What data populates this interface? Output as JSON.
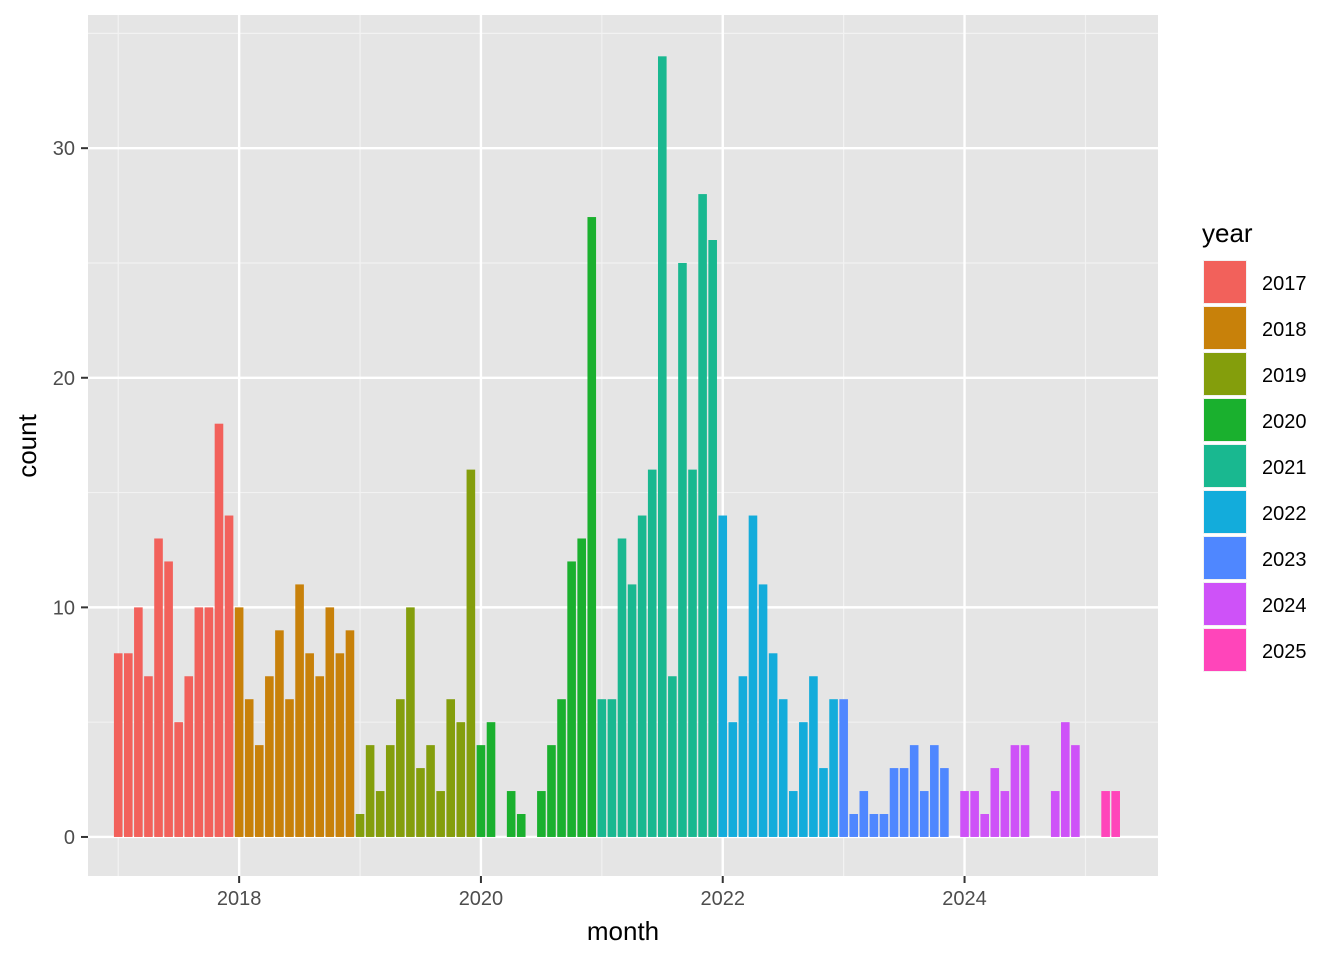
{
  "chart_data": {
    "type": "bar",
    "title": "",
    "xlabel": "month",
    "ylabel": "count",
    "ylim": [
      -1.7,
      35.8
    ],
    "xlim": [
      2016.75,
      2025.6
    ],
    "grid": true,
    "x_ticks": [
      "2018",
      "2020",
      "2022",
      "2024"
    ],
    "y_ticks": [
      "0",
      "10",
      "20",
      "30"
    ],
    "legend": {
      "title": "year",
      "placement": "right"
    },
    "series": [
      {
        "name": "2017",
        "color": "#F2615B",
        "months": [
          1,
          2,
          3,
          4,
          5,
          6,
          7,
          8,
          9,
          10,
          11,
          12
        ],
        "values": [
          8,
          8,
          10,
          7,
          13,
          12,
          5,
          7,
          10,
          10,
          18,
          14
        ]
      },
      {
        "name": "2018",
        "color": "#C8810A",
        "months": [
          1,
          2,
          3,
          4,
          5,
          6,
          7,
          8,
          9,
          10,
          11,
          12
        ],
        "values": [
          10,
          6,
          4,
          7,
          9,
          6,
          11,
          8,
          7,
          10,
          8,
          9
        ]
      },
      {
        "name": "2019",
        "color": "#849E0C",
        "months": [
          1,
          2,
          3,
          4,
          5,
          6,
          7,
          8,
          9,
          10,
          11,
          12
        ],
        "values": [
          1,
          4,
          2,
          4,
          6,
          10,
          3,
          4,
          2,
          6,
          5,
          16
        ]
      },
      {
        "name": "2020",
        "color": "#1AB02E",
        "months": [
          1,
          2,
          3,
          4,
          5,
          6,
          7,
          8,
          9,
          10,
          11,
          12
        ],
        "values": [
          4,
          5,
          0,
          2,
          1,
          0,
          2,
          4,
          6,
          12,
          13,
          27
        ]
      },
      {
        "name": "2021",
        "color": "#19B890",
        "months": [
          1,
          2,
          3,
          4,
          5,
          6,
          7,
          8,
          9,
          10,
          11,
          12
        ],
        "values": [
          6,
          6,
          13,
          11,
          14,
          16,
          34,
          7,
          25,
          16,
          28,
          26
        ]
      },
      {
        "name": "2022",
        "color": "#13ACDB",
        "months": [
          1,
          2,
          3,
          4,
          5,
          6,
          7,
          8,
          9,
          10,
          11,
          12
        ],
        "values": [
          14,
          5,
          7,
          14,
          11,
          8,
          6,
          2,
          5,
          7,
          3,
          6
        ]
      },
      {
        "name": "2023",
        "color": "#4F87FF",
        "months": [
          1,
          2,
          3,
          4,
          5,
          6,
          7,
          8,
          9,
          10,
          11,
          12
        ],
        "values": [
          6,
          1,
          2,
          1,
          1,
          3,
          3,
          4,
          2,
          4,
          3,
          0
        ]
      },
      {
        "name": "2024",
        "color": "#CE52F8",
        "months": [
          1,
          2,
          3,
          4,
          5,
          6,
          7,
          8,
          9,
          10,
          11,
          12
        ],
        "values": [
          2,
          2,
          1,
          3,
          2,
          4,
          4,
          0,
          0,
          2,
          5,
          4
        ]
      },
      {
        "name": "2025",
        "color": "#FF45BA",
        "months": [
          1,
          2,
          3,
          4
        ],
        "values": [
          0,
          0,
          2,
          2
        ]
      }
    ]
  }
}
